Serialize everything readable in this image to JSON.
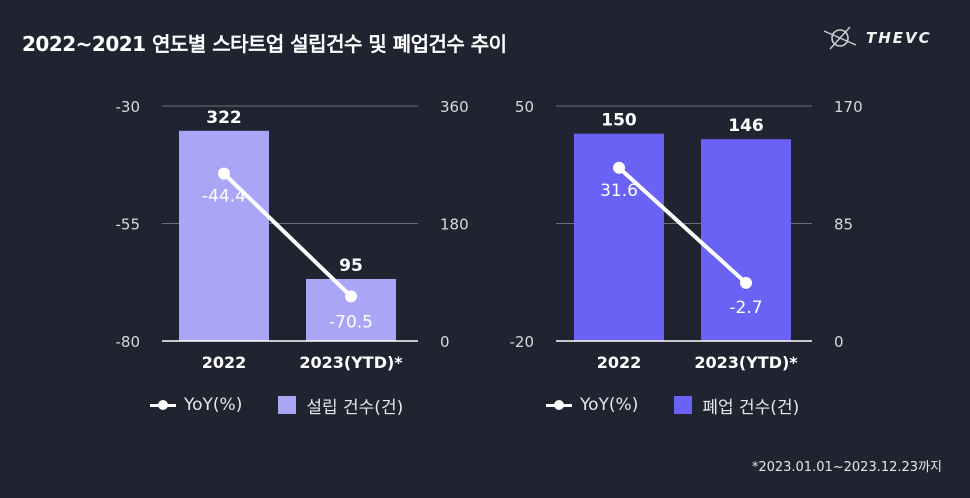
{
  "header": {
    "title": "2022~2021 연도별 스타트업 설립건수 및 폐업건수 추이",
    "logo_text": "THEVC"
  },
  "footnote": "*2023.01.01~2023.12.23까지",
  "colors": {
    "background": "#202430",
    "founding_bar": "#a9a6f6",
    "closure_bar": "#6962f5",
    "yoy_line": "#ffffff"
  },
  "chart_data": [
    {
      "type": "bar",
      "categories": [
        "2022",
        "2023(YTD)*"
      ],
      "series": [
        {
          "name": "설립 건수(건)",
          "type": "bar",
          "axis": "right",
          "values": [
            322,
            95
          ]
        },
        {
          "name": "YoY(%)",
          "type": "line",
          "axis": "left",
          "values": [
            -44.4,
            -70.5
          ]
        }
      ],
      "left_axis": {
        "range": [
          -80,
          -30
        ],
        "ticks": [
          "-30",
          "-55",
          "-80"
        ]
      },
      "right_axis": {
        "range": [
          0,
          360
        ],
        "ticks": [
          "360",
          "180",
          "0"
        ]
      },
      "legend": [
        "YoY(%)",
        "설립 건수(건)"
      ],
      "legend_position": "bottom",
      "grid": "horizontal"
    },
    {
      "type": "bar",
      "categories": [
        "2022",
        "2023(YTD)*"
      ],
      "series": [
        {
          "name": "폐업 건수(건)",
          "type": "bar",
          "axis": "right",
          "values": [
            150,
            146
          ]
        },
        {
          "name": "YoY(%)",
          "type": "line",
          "axis": "left",
          "values": [
            31.6,
            -2.7
          ]
        }
      ],
      "left_axis": {
        "range": [
          -20,
          50
        ],
        "ticks": [
          "50",
          "",
          "-20"
        ]
      },
      "right_axis": {
        "range": [
          0,
          170
        ],
        "ticks": [
          "170",
          "85",
          "0"
        ]
      },
      "legend": [
        "YoY(%)",
        "폐업 건수(건)"
      ],
      "legend_position": "bottom",
      "grid": "horizontal"
    }
  ]
}
